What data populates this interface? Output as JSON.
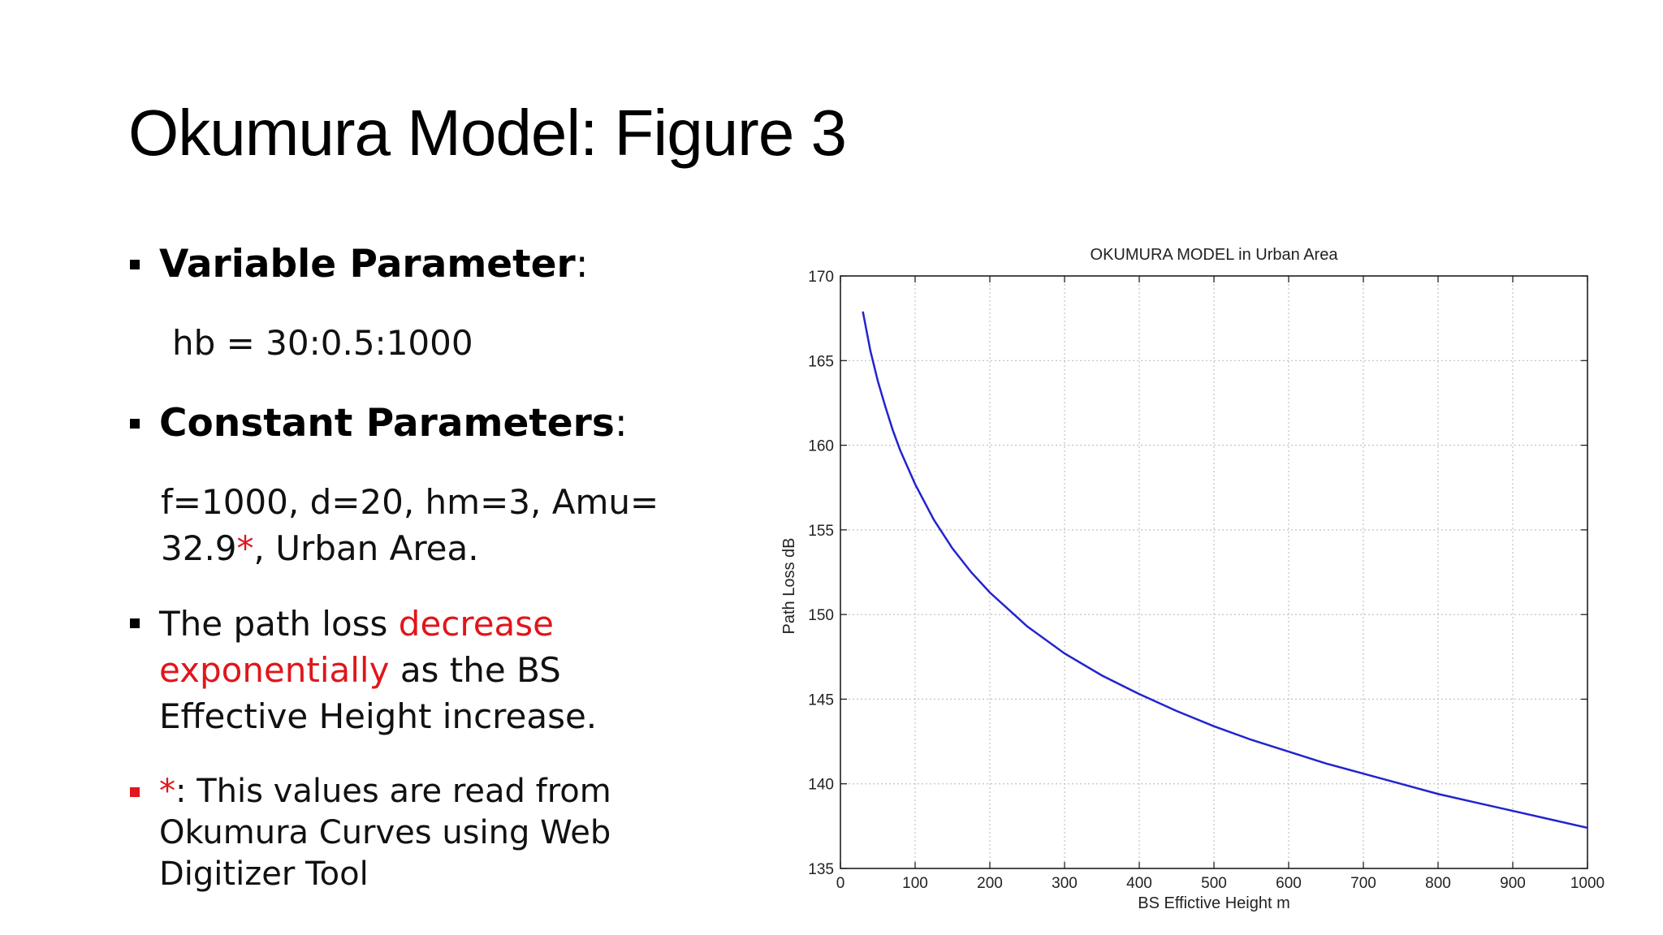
{
  "slide": {
    "title": "Okumura Model: Figure 3",
    "variable": {
      "heading": "Variable Parameter",
      "colon": ":",
      "value": "hb = 30:0.5:1000"
    },
    "constant": {
      "heading": "Constant Parameters",
      "colon": ":",
      "line1": "f=1000, d=20, hm=3, Amu=",
      "line2_pre": "32.9",
      "line2_star": "*",
      "line2_post": ", Urban Area."
    },
    "observation": {
      "pre": "The path loss ",
      "highlight1": "decrease",
      "highlight2": "exponentially",
      "mid": " as the BS",
      "line3": "Effective Height increase."
    },
    "footnote": {
      "star": "*",
      "line1": ": This values are read from",
      "line2": "Okumura Curves using Web",
      "line3": "Digitizer Tool"
    }
  },
  "colors": {
    "accent_red": "#e0161b",
    "curve": "#2323d0",
    "grid": "#b5b5b5"
  },
  "chart_data": {
    "type": "line",
    "title": "OKUMURA MODEL in Urban Area",
    "xlabel": "BS Effictive Height m",
    "ylabel": "Path Loss dB",
    "xlim": [
      0,
      1000
    ],
    "ylim": [
      135,
      170
    ],
    "xticks": [
      0,
      100,
      200,
      300,
      400,
      500,
      600,
      700,
      800,
      900,
      1000
    ],
    "yticks": [
      135,
      140,
      145,
      150,
      155,
      160,
      165,
      170
    ],
    "grid": true,
    "series": [
      {
        "x": [
          30,
          40,
          50,
          60,
          70,
          80,
          100,
          125,
          150,
          175,
          200,
          250,
          300,
          350,
          400,
          450,
          500,
          550,
          600,
          650,
          700,
          750,
          800,
          850,
          900,
          950,
          1000
        ],
        "y": [
          167.9,
          165.6,
          163.8,
          162.3,
          160.9,
          159.7,
          157.7,
          155.6,
          153.9,
          152.5,
          151.3,
          149.3,
          147.7,
          146.4,
          145.3,
          144.3,
          143.4,
          142.6,
          141.9,
          141.2,
          140.6,
          140.0,
          139.4,
          138.9,
          138.4,
          137.9,
          137.4
        ]
      }
    ]
  }
}
